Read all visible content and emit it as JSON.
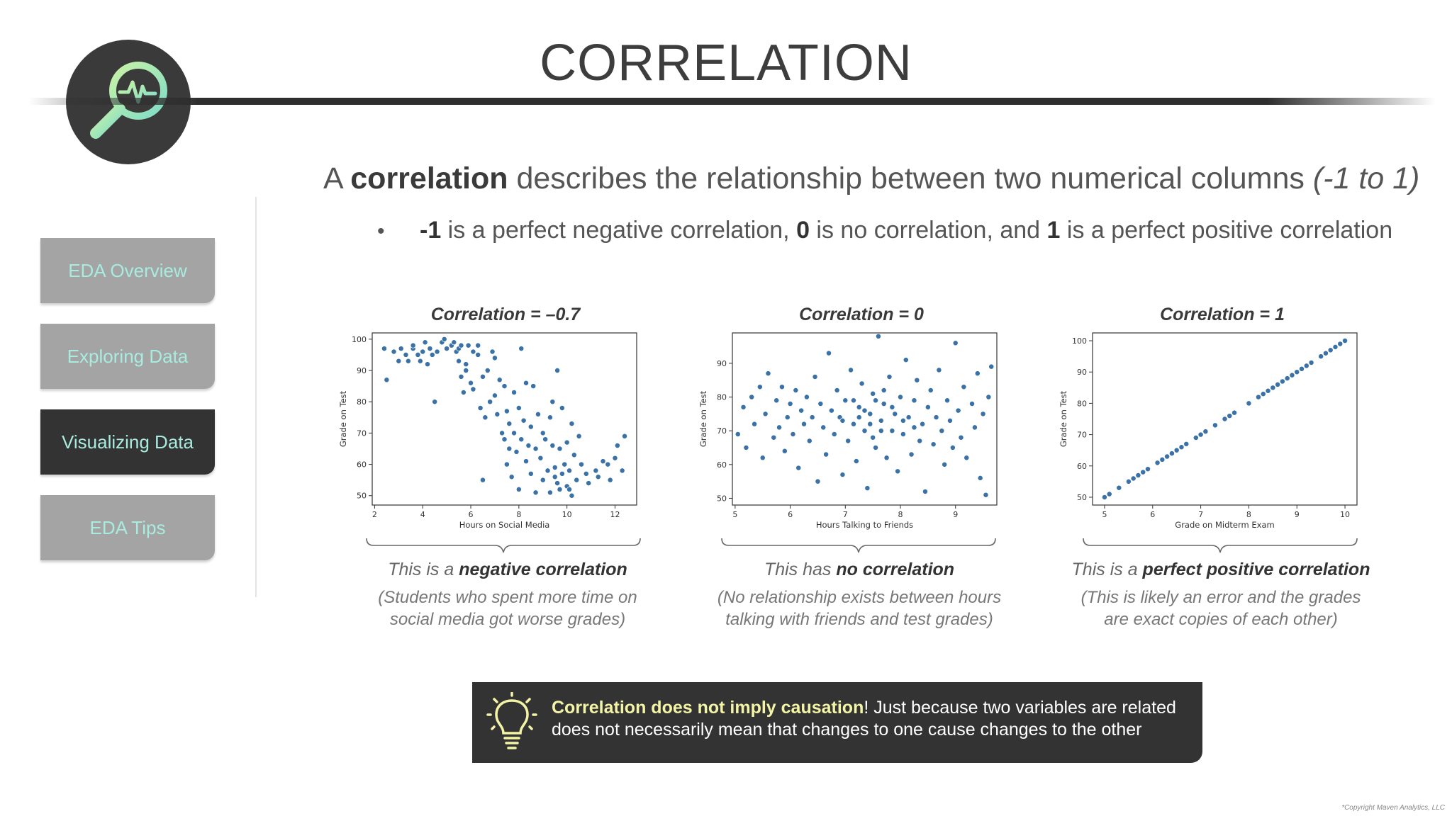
{
  "header": {
    "title": "CORRELATION"
  },
  "logo": {
    "icon": "magnifier-heartbeat-icon",
    "colors": [
      "#9fe6d0",
      "#c9f3a6"
    ]
  },
  "sidebar": {
    "items": [
      {
        "label": "EDA Overview",
        "active": false
      },
      {
        "label": "Exploring Data",
        "active": false
      },
      {
        "label": "Visualizing Data",
        "active": true
      },
      {
        "label": "EDA Tips",
        "active": false
      }
    ]
  },
  "intro": {
    "lead": "A ",
    "keyword": "correlation",
    "rest": " describes the relationship between two numerical columns ",
    "range": "(-1 to 1)"
  },
  "bullet": {
    "neg": "-1",
    "t1": " is a perfect negative correlation, ",
    "zero": "0",
    "t2": " is no correlation, and ",
    "one": "1",
    "t3": " is a perfect positive correlation"
  },
  "panels": [
    {
      "title": "Correlation = –0.7",
      "cap_pre": "This is a ",
      "cap_bold": "negative correlation",
      "note1": "(Students who spent more time on",
      "note2": "social media got worse grades)"
    },
    {
      "title": "Correlation = 0",
      "cap_pre": "This has ",
      "cap_bold": "no correlation",
      "note1": "(No relationship exists between hours",
      "note2": "talking with friends and test grades)"
    },
    {
      "title": "Correlation = 1",
      "cap_pre": "This is a ",
      "cap_bold": "perfect positive correlation",
      "note1": "(This is likely an error and the grades",
      "note2": "are exact copies of each other)"
    }
  ],
  "callout": {
    "icon": "lightbulb-icon",
    "highlight": "Correlation does not imply causation",
    "text": "! Just because two variables are related does not necessarily mean that changes to one cause changes to the other"
  },
  "copyright": "*Copyright Maven Analytics, LLC",
  "chart_data": [
    {
      "type": "scatter",
      "title": "Correlation = –0.7",
      "xlabel": "Hours on Social Media",
      "ylabel": "Grade on Test",
      "xlim": [
        1.9,
        12.9
      ],
      "ylim": [
        47,
        102
      ],
      "xticks": [
        2,
        4,
        6,
        8,
        10,
        12
      ],
      "yticks": [
        50,
        60,
        70,
        80,
        90,
        100
      ],
      "color": "#3a72a8",
      "points": [
        [
          2.4,
          97
        ],
        [
          2.5,
          87
        ],
        [
          2.8,
          96
        ],
        [
          3.0,
          93
        ],
        [
          3.1,
          97
        ],
        [
          3.3,
          95
        ],
        [
          3.4,
          93
        ],
        [
          3.6,
          97
        ],
        [
          3.6,
          98
        ],
        [
          3.8,
          95
        ],
        [
          3.9,
          93
        ],
        [
          4.0,
          96
        ],
        [
          4.1,
          99
        ],
        [
          4.2,
          92
        ],
        [
          4.3,
          97
        ],
        [
          4.4,
          95
        ],
        [
          4.5,
          80
        ],
        [
          4.6,
          96
        ],
        [
          4.8,
          99
        ],
        [
          4.9,
          100
        ],
        [
          5.0,
          97
        ],
        [
          5.2,
          98
        ],
        [
          5.3,
          99
        ],
        [
          5.4,
          96
        ],
        [
          5.5,
          97
        ],
        [
          5.5,
          93
        ],
        [
          5.6,
          98
        ],
        [
          5.6,
          88
        ],
        [
          5.7,
          83
        ],
        [
          5.8,
          90
        ],
        [
          5.8,
          92
        ],
        [
          5.9,
          98
        ],
        [
          6.0,
          86
        ],
        [
          6.1,
          96
        ],
        [
          6.1,
          84
        ],
        [
          6.3,
          95
        ],
        [
          6.3,
          98
        ],
        [
          6.4,
          78
        ],
        [
          6.5,
          88
        ],
        [
          6.5,
          55
        ],
        [
          6.6,
          75
        ],
        [
          6.7,
          90
        ],
        [
          6.8,
          80
        ],
        [
          6.9,
          96
        ],
        [
          7.0,
          94
        ],
        [
          7.0,
          82
        ],
        [
          7.1,
          76
        ],
        [
          7.2,
          87
        ],
        [
          7.3,
          70
        ],
        [
          7.4,
          68
        ],
        [
          7.4,
          85
        ],
        [
          7.5,
          77
        ],
        [
          7.5,
          60
        ],
        [
          7.6,
          73
        ],
        [
          7.6,
          65
        ],
        [
          7.7,
          56
        ],
        [
          7.8,
          83
        ],
        [
          7.8,
          70
        ],
        [
          7.9,
          64
        ],
        [
          8.0,
          78
        ],
        [
          8.0,
          52
        ],
        [
          8.1,
          97
        ],
        [
          8.1,
          68
        ],
        [
          8.2,
          74
        ],
        [
          8.3,
          61
        ],
        [
          8.3,
          86
        ],
        [
          8.4,
          66
        ],
        [
          8.5,
          72
        ],
        [
          8.5,
          57
        ],
        [
          8.6,
          85
        ],
        [
          8.7,
          65
        ],
        [
          8.7,
          51
        ],
        [
          8.8,
          76
        ],
        [
          8.9,
          62
        ],
        [
          9.0,
          70
        ],
        [
          9.0,
          55
        ],
        [
          9.1,
          68
        ],
        [
          9.2,
          58
        ],
        [
          9.3,
          75
        ],
        [
          9.3,
          51
        ],
        [
          9.4,
          66
        ],
        [
          9.4,
          80
        ],
        [
          9.5,
          56
        ],
        [
          9.5,
          59
        ],
        [
          9.6,
          54
        ],
        [
          9.6,
          90
        ],
        [
          9.7,
          65
        ],
        [
          9.7,
          52
        ],
        [
          9.8,
          78
        ],
        [
          9.8,
          57
        ],
        [
          9.9,
          60
        ],
        [
          10.0,
          53
        ],
        [
          10.0,
          67
        ],
        [
          10.1,
          52
        ],
        [
          10.1,
          58
        ],
        [
          10.2,
          73
        ],
        [
          10.2,
          50
        ],
        [
          10.3,
          63
        ],
        [
          10.4,
          55
        ],
        [
          10.5,
          69
        ],
        [
          10.6,
          60
        ],
        [
          10.8,
          57
        ],
        [
          10.9,
          54
        ],
        [
          11.2,
          58
        ],
        [
          11.3,
          56
        ],
        [
          11.5,
          61
        ],
        [
          11.7,
          60
        ],
        [
          11.8,
          55
        ],
        [
          12.0,
          62
        ],
        [
          12.1,
          66
        ],
        [
          12.3,
          58
        ],
        [
          12.4,
          69
        ]
      ]
    },
    {
      "type": "scatter",
      "title": "Correlation = 0",
      "xlabel": "Hours Talking to Friends",
      "ylabel": "Grade on Test",
      "xlim": [
        4.95,
        9.75
      ],
      "ylim": [
        48,
        99
      ],
      "xticks": [
        5,
        6,
        7,
        8,
        9
      ],
      "yticks": [
        50,
        60,
        70,
        80,
        90
      ],
      "color": "#3a72a8",
      "points": [
        [
          5.05,
          69
        ],
        [
          5.15,
          77
        ],
        [
          5.2,
          65
        ],
        [
          5.3,
          80
        ],
        [
          5.35,
          72
        ],
        [
          5.45,
          83
        ],
        [
          5.5,
          62
        ],
        [
          5.55,
          75
        ],
        [
          5.6,
          87
        ],
        [
          5.7,
          68
        ],
        [
          5.75,
          79
        ],
        [
          5.8,
          71
        ],
        [
          5.85,
          83
        ],
        [
          5.9,
          64
        ],
        [
          5.95,
          74
        ],
        [
          6.0,
          78
        ],
        [
          6.05,
          69
        ],
        [
          6.1,
          82
        ],
        [
          6.15,
          59
        ],
        [
          6.2,
          76
        ],
        [
          6.25,
          72
        ],
        [
          6.3,
          80
        ],
        [
          6.35,
          67
        ],
        [
          6.4,
          74
        ],
        [
          6.45,
          86
        ],
        [
          6.5,
          55
        ],
        [
          6.55,
          78
        ],
        [
          6.6,
          71
        ],
        [
          6.65,
          63
        ],
        [
          6.7,
          93
        ],
        [
          6.75,
          76
        ],
        [
          6.8,
          69
        ],
        [
          6.85,
          82
        ],
        [
          6.9,
          74
        ],
        [
          6.95,
          57
        ],
        [
          7.0,
          79
        ],
        [
          7.05,
          67
        ],
        [
          7.1,
          88
        ],
        [
          7.15,
          72
        ],
        [
          7.2,
          61
        ],
        [
          7.25,
          77
        ],
        [
          7.3,
          84
        ],
        [
          7.35,
          70
        ],
        [
          7.4,
          53
        ],
        [
          7.45,
          75
        ],
        [
          7.5,
          81
        ],
        [
          7.55,
          65
        ],
        [
          7.6,
          98
        ],
        [
          7.65,
          73
        ],
        [
          7.7,
          78
        ],
        [
          7.75,
          62
        ],
        [
          7.8,
          86
        ],
        [
          7.85,
          70
        ],
        [
          7.9,
          75
        ],
        [
          7.95,
          58
        ],
        [
          8.0,
          80
        ],
        [
          8.05,
          69
        ],
        [
          8.1,
          91
        ],
        [
          8.15,
          74
        ],
        [
          8.2,
          63
        ],
        [
          8.25,
          79
        ],
        [
          8.3,
          85
        ],
        [
          8.35,
          67
        ],
        [
          8.4,
          72
        ],
        [
          8.45,
          52
        ],
        [
          8.5,
          77
        ],
        [
          8.55,
          82
        ],
        [
          8.6,
          66
        ],
        [
          8.65,
          74
        ],
        [
          8.7,
          88
        ],
        [
          8.75,
          70
        ],
        [
          8.8,
          60
        ],
        [
          8.85,
          79
        ],
        [
          8.9,
          73
        ],
        [
          8.95,
          65
        ],
        [
          9.0,
          96
        ],
        [
          9.05,
          76
        ],
        [
          9.1,
          68
        ],
        [
          9.15,
          83
        ],
        [
          9.2,
          62
        ],
        [
          9.3,
          78
        ],
        [
          9.35,
          71
        ],
        [
          9.4,
          87
        ],
        [
          9.45,
          56
        ],
        [
          9.5,
          75
        ],
        [
          9.55,
          51
        ],
        [
          9.6,
          80
        ],
        [
          9.65,
          89
        ],
        [
          7.35,
          76
        ],
        [
          7.45,
          72
        ],
        [
          7.55,
          79
        ],
        [
          7.65,
          70
        ],
        [
          7.25,
          74
        ],
        [
          7.85,
          77
        ],
        [
          7.15,
          79
        ],
        [
          8.05,
          73
        ],
        [
          7.5,
          68
        ],
        [
          7.7,
          82
        ],
        [
          6.95,
          73
        ],
        [
          8.25,
          71
        ]
      ]
    },
    {
      "type": "scatter",
      "title": "Correlation = 1",
      "xlabel": "Grade on Midterm Exam",
      "ylabel": "Grade on Test",
      "xlim": [
        4.75,
        10.25
      ],
      "ylim": [
        47.5,
        102.5
      ],
      "xticks": [
        5,
        6,
        7,
        8,
        9,
        10
      ],
      "yticks": [
        50,
        60,
        70,
        80,
        90,
        100
      ],
      "color": "#3a72a8",
      "points": [
        [
          5.0,
          50
        ],
        [
          5.1,
          51
        ],
        [
          5.3,
          53
        ],
        [
          5.5,
          55
        ],
        [
          5.6,
          56
        ],
        [
          5.7,
          57
        ],
        [
          5.8,
          58
        ],
        [
          5.9,
          59
        ],
        [
          6.1,
          61
        ],
        [
          6.2,
          62
        ],
        [
          6.3,
          63
        ],
        [
          6.4,
          64
        ],
        [
          6.5,
          65
        ],
        [
          6.6,
          66
        ],
        [
          6.7,
          67
        ],
        [
          6.9,
          69
        ],
        [
          7.0,
          70
        ],
        [
          7.1,
          71
        ],
        [
          7.3,
          73
        ],
        [
          7.5,
          75
        ],
        [
          7.6,
          76
        ],
        [
          7.7,
          77
        ],
        [
          8.0,
          80
        ],
        [
          8.2,
          82
        ],
        [
          8.3,
          83
        ],
        [
          8.4,
          84
        ],
        [
          8.5,
          85
        ],
        [
          8.6,
          86
        ],
        [
          8.7,
          87
        ],
        [
          8.8,
          88
        ],
        [
          8.9,
          89
        ],
        [
          9.0,
          90
        ],
        [
          9.1,
          91
        ],
        [
          9.2,
          92
        ],
        [
          9.3,
          93
        ],
        [
          9.5,
          95
        ],
        [
          9.6,
          96
        ],
        [
          9.7,
          97
        ],
        [
          9.8,
          98
        ],
        [
          9.9,
          99
        ],
        [
          10.0,
          100
        ]
      ]
    }
  ]
}
